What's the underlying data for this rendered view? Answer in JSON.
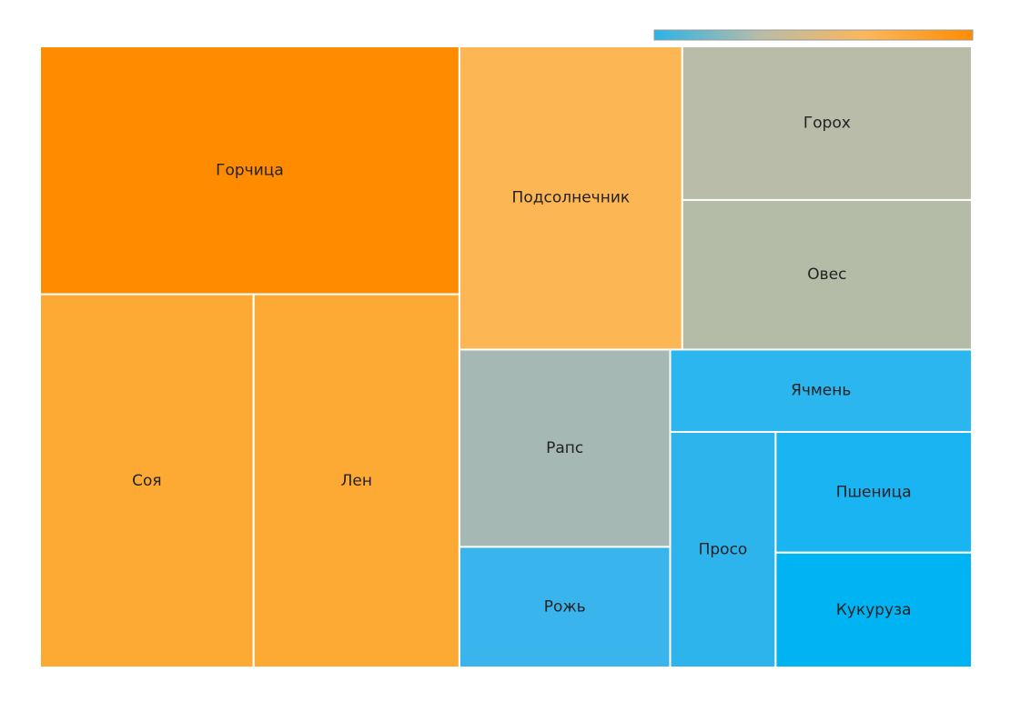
{
  "chart_data": {
    "type": "treemap",
    "categories": [
      "Горчица",
      "Соя",
      "Лен",
      "Подсолнечник",
      "Горох",
      "Овес",
      "Рапс",
      "Рожь",
      "Ячмень",
      "Просо",
      "Пшеница",
      "Кукуруза"
    ],
    "values": [
      18,
      13.8,
      13.3,
      11.7,
      7.7,
      7.5,
      7.2,
      4.4,
      4.3,
      4.3,
      4.1,
      3.9
    ],
    "colors": [
      "#ff8c00",
      "#fdaa35",
      "#fdaa35",
      "#fdb654",
      "#b9bca8",
      "#b4bca8",
      "#a6b8b4",
      "#3ab4ec",
      "#2cb6ef",
      "#2eb4ec",
      "#1ab4f2",
      "#00b4f4"
    ],
    "colorscale": [
      "#2ab4e8",
      "#b8bca8",
      "#fdb75a",
      "#ff8c00"
    ]
  }
}
